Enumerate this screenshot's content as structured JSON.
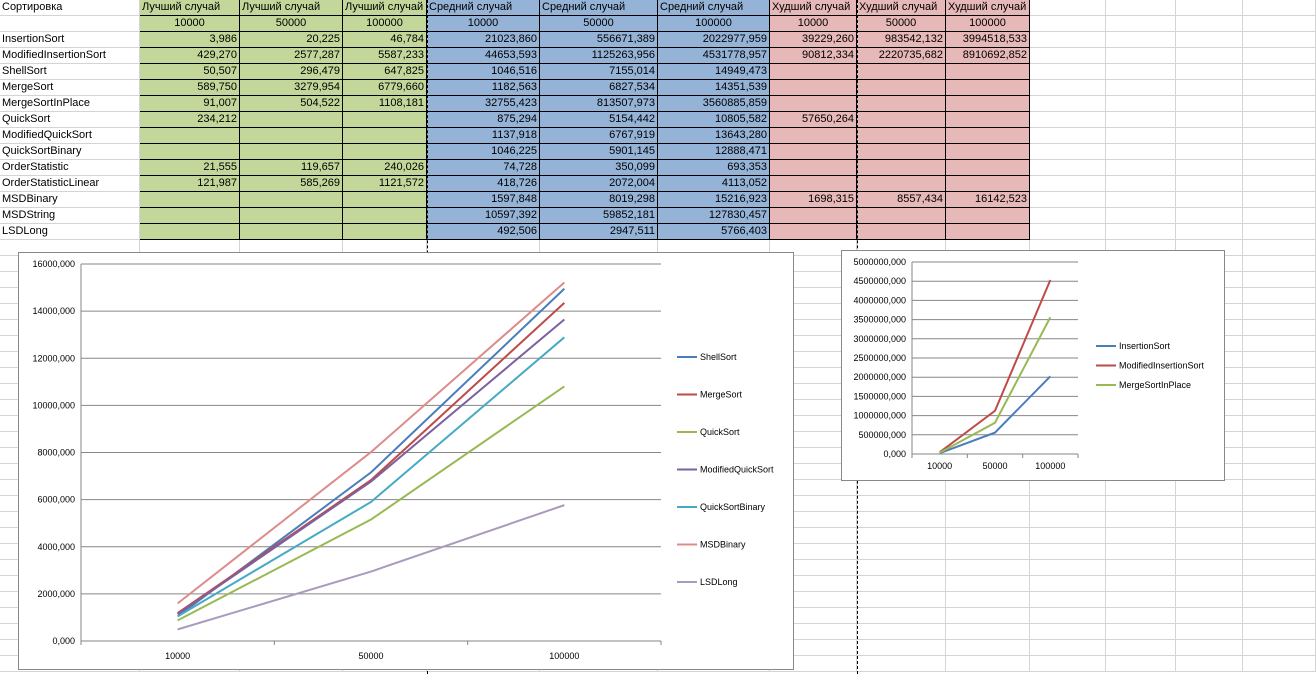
{
  "sheet": {
    "corner_label": "Сортировка",
    "groups": [
      {
        "key": "best",
        "label": "Лучший случай",
        "color": "#c4d79b"
      },
      {
        "key": "avg",
        "label": "Средний случай",
        "color": "#95b3d7"
      },
      {
        "key": "worst",
        "label": "Худший случай",
        "color": "#e6b8b7"
      }
    ],
    "sizes": [
      "10000",
      "50000",
      "100000"
    ],
    "rows": [
      {
        "name": "InsertionSort",
        "values": [
          "3,986",
          "20,225",
          "46,784",
          "21023,860",
          "556671,389",
          "2022977,959",
          "39229,260",
          "983542,132",
          "3994518,533"
        ]
      },
      {
        "name": "ModifiedInsertionSort",
        "values": [
          "429,270",
          "2577,287",
          "5587,233",
          "44653,593",
          "1125263,956",
          "4531778,957",
          "90812,334",
          "2220735,682",
          "8910692,852"
        ]
      },
      {
        "name": "ShellSort",
        "values": [
          "50,507",
          "296,479",
          "647,825",
          "1046,516",
          "7155,014",
          "14949,473",
          "",
          "",
          ""
        ]
      },
      {
        "name": "MergeSort",
        "values": [
          "589,750",
          "3279,954",
          "6779,660",
          "1182,563",
          "6827,534",
          "14351,539",
          "",
          "",
          ""
        ]
      },
      {
        "name": "MergeSortInPlace",
        "values": [
          "91,007",
          "504,522",
          "1108,181",
          "32755,423",
          "813507,973",
          "3560885,859",
          "",
          "",
          ""
        ]
      },
      {
        "name": "QuickSort",
        "values": [
          "234,212",
          "",
          "",
          "875,294",
          "5154,442",
          "10805,582",
          "57650,264",
          "",
          ""
        ]
      },
      {
        "name": "ModifiedQuickSort",
        "values": [
          "",
          "",
          "",
          "1137,918",
          "6767,919",
          "13643,280",
          "",
          "",
          ""
        ]
      },
      {
        "name": "QuickSortBinary",
        "values": [
          "",
          "",
          "",
          "1046,225",
          "5901,145",
          "12888,471",
          "",
          "",
          ""
        ]
      },
      {
        "name": "OrderStatistic",
        "values": [
          "21,555",
          "119,657",
          "240,026",
          "74,728",
          "350,099",
          "693,353",
          "",
          "",
          ""
        ]
      },
      {
        "name": "OrderStatisticLinear",
        "values": [
          "121,987",
          "585,269",
          "1121,572",
          "418,726",
          "2072,004",
          "4113,052",
          "",
          "",
          ""
        ]
      },
      {
        "name": "MSDBinary",
        "values": [
          "",
          "",
          "",
          "1597,848",
          "8019,298",
          "15216,923",
          "1698,315",
          "8557,434",
          "16142,523"
        ]
      },
      {
        "name": "MSDString",
        "values": [
          "",
          "",
          "",
          "10597,392",
          "59852,181",
          "127830,457",
          "",
          "",
          ""
        ]
      },
      {
        "name": "LSDLong",
        "values": [
          "",
          "",
          "",
          "492,506",
          "2947,511",
          "5766,403",
          "",
          "",
          ""
        ]
      }
    ]
  },
  "chart_data": [
    {
      "type": "line",
      "categories": [
        "10000",
        "50000",
        "100000"
      ],
      "ylim": [
        0,
        16000
      ],
      "yticks": [
        "0,000",
        "2000,000",
        "4000,000",
        "6000,000",
        "8000,000",
        "10000,000",
        "12000,000",
        "14000,000",
        "16000,000"
      ],
      "legend_position": "right",
      "grid": true,
      "series": [
        {
          "name": "ShellSort",
          "color": "#4a7ebb",
          "values": [
            1046.516,
            7155.014,
            14949.473
          ]
        },
        {
          "name": "MergeSort",
          "color": "#be4b48",
          "values": [
            1182.563,
            6827.534,
            14351.539
          ]
        },
        {
          "name": "QuickSort",
          "color": "#98b954",
          "values": [
            875.294,
            5154.442,
            10805.582
          ]
        },
        {
          "name": "ModifiedQuickSort",
          "color": "#7d60a0",
          "values": [
            1137.918,
            6767.919,
            13643.28
          ]
        },
        {
          "name": "QuickSortBinary",
          "color": "#46aac5",
          "values": [
            1046.225,
            5901.145,
            12888.471
          ]
        },
        {
          "name": "MSDBinary",
          "color": "#dd8c8a",
          "values": [
            1597.848,
            8019.298,
            15216.923
          ]
        },
        {
          "name": "LSDLong",
          "color": "#a99bbd",
          "values": [
            492.506,
            2947.511,
            5766.403
          ]
        }
      ]
    },
    {
      "type": "line",
      "categories": [
        "10000",
        "50000",
        "100000"
      ],
      "ylim": [
        0,
        5000000
      ],
      "yticks": [
        "0,000",
        "500000,000",
        "1000000,000",
        "1500000,000",
        "2000000,000",
        "2500000,000",
        "3000000,000",
        "3500000,000",
        "4000000,000",
        "4500000,000",
        "5000000,000"
      ],
      "legend_position": "right",
      "grid": true,
      "series": [
        {
          "name": "InsertionSort",
          "color": "#4a7ebb",
          "values": [
            21023.86,
            556671.389,
            2022977.959
          ]
        },
        {
          "name": "ModifiedInsertionSort",
          "color": "#be4b48",
          "values": [
            44653.593,
            1125263.956,
            4531778.957
          ]
        },
        {
          "name": "MergeSortInPlace",
          "color": "#98b954",
          "values": [
            32755.423,
            813507.973,
            3560885.859
          ]
        }
      ]
    }
  ]
}
